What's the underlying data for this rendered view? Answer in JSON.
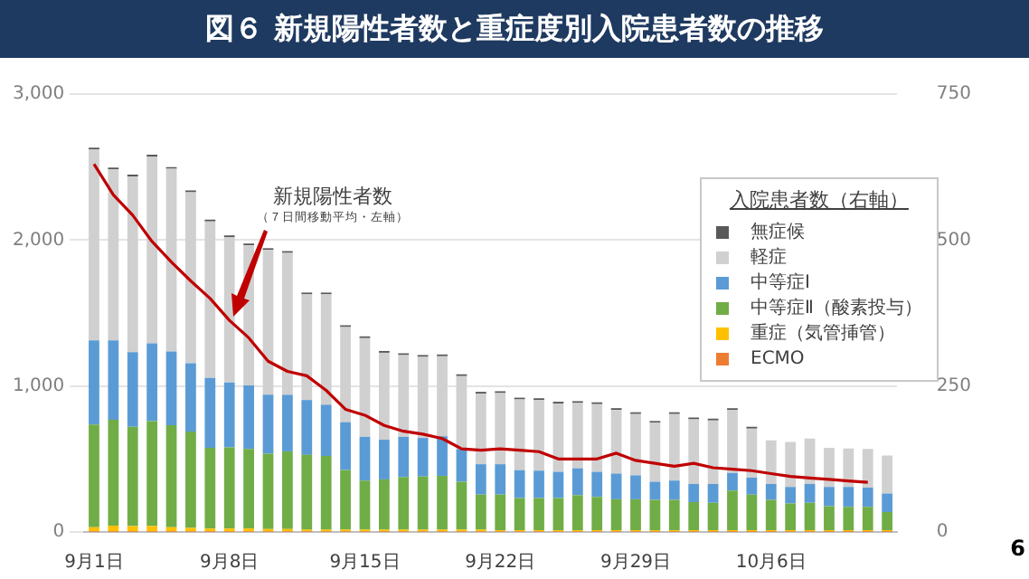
{
  "chart_data": {
    "type": "bar",
    "stacked": true,
    "title": "図６ 新規陽性者数と重症度別入院患者数の推移",
    "legend_title": "入院患者数（右軸）",
    "legend": "top right",
    "grid": "y",
    "categories": [
      "9月1日",
      null,
      null,
      null,
      null,
      null,
      null,
      "9月8日",
      null,
      null,
      null,
      null,
      null,
      null,
      "9月15日",
      null,
      null,
      null,
      null,
      null,
      null,
      "9月22日",
      null,
      null,
      null,
      null,
      null,
      null,
      "9月29日",
      null,
      null,
      null,
      null,
      null,
      null,
      "10月6日",
      null,
      null,
      null,
      null,
      null,
      null
    ],
    "ylim": [
      0,
      3000
    ],
    "yticks": [
      {
        "value": 0,
        "label": "0"
      },
      {
        "value": 1000,
        "label": "1,000"
      },
      {
        "value": 2000,
        "label": "2,000"
      },
      {
        "value": 3000,
        "label": "3,000"
      }
    ],
    "y2lim": [
      0,
      750
    ],
    "y2ticks": [
      0,
      250,
      500,
      750
    ],
    "series": [
      {
        "name": "ECMO",
        "color": "#ed7d31",
        "axis": "y2",
        "values": [
          1,
          1,
          1,
          1,
          1,
          1,
          1,
          1,
          1,
          1,
          1,
          1,
          1,
          1,
          1,
          1,
          1,
          1,
          1,
          1,
          1,
          1,
          1,
          1,
          1,
          1,
          1,
          1,
          1,
          1,
          1,
          1,
          1,
          1,
          1,
          1,
          1,
          1,
          1,
          1,
          1,
          1
        ]
      },
      {
        "name": "重症（気管挿管）",
        "color": "#ffc000",
        "axis": "y2",
        "values": [
          7,
          10,
          9,
          9,
          7,
          6,
          5,
          5,
          5,
          4,
          4,
          3,
          3,
          3,
          3,
          3,
          3,
          3,
          3,
          3,
          3,
          2,
          2,
          2,
          2,
          2,
          2,
          2,
          2,
          2,
          2,
          2,
          2,
          2,
          2,
          2,
          2,
          2,
          2,
          2,
          2,
          2
        ]
      },
      {
        "name": "中等症Ⅱ（酸素投与）",
        "color": "#70ad47",
        "axis": "y2",
        "values": [
          176,
          181,
          170,
          180,
          175,
          165,
          138,
          139,
          136,
          129,
          133,
          128,
          126,
          102,
          84,
          86,
          90,
          91,
          92,
          82,
          60,
          61,
          55,
          55,
          55,
          60,
          57,
          53,
          53,
          52,
          52,
          48,
          47,
          68,
          61,
          52,
          46,
          47,
          41,
          40,
          40,
          31
        ]
      },
      {
        "name": "中等症Ⅰ",
        "color": "#5b9bd5",
        "axis": "y2",
        "values": [
          144,
          136,
          128,
          133,
          126,
          117,
          120,
          111,
          109,
          101,
          97,
          94,
          88,
          82,
          75,
          68,
          69,
          66,
          68,
          56,
          52,
          52,
          48,
          47,
          45,
          46,
          43,
          44,
          41,
          31,
          33,
          31,
          32,
          30,
          29,
          27,
          28,
          32,
          33,
          34,
          33,
          32
        ]
      },
      {
        "name": "軽症",
        "color": "#d0d0d0",
        "axis": "y2",
        "values": [
          327,
          293,
          301,
          320,
          313,
          293,
          268,
          249,
          240,
          248,
          243,
          181,
          189,
          163,
          169,
          149,
          140,
          139,
          137,
          125,
          121,
          122,
          121,
          121,
          117,
          112,
          116,
          109,
          105,
          101,
          114,
          111,
          109,
          108,
          84,
          75,
          77,
          78,
          67,
          66,
          66,
          65
        ]
      },
      {
        "name": "無症候",
        "color": "#595959",
        "axis": "y2",
        "values": [
          3,
          3,
          3,
          3,
          3,
          3,
          3,
          3,
          3,
          3,
          3,
          3,
          3,
          3,
          3,
          3,
          3,
          3,
          3,
          3,
          3,
          3,
          3,
          3,
          3,
          3,
          3,
          3,
          3,
          3,
          3,
          3,
          3,
          3,
          3,
          null,
          null,
          null,
          null,
          null,
          null,
          null
        ]
      },
      {
        "type": "line",
        "color": "#c00000",
        "values": [
          2520,
          2310,
          2170,
          1990,
          1850,
          1720,
          1600,
          1450,
          1330,
          1170,
          1100,
          1070,
          970,
          840,
          800,
          730,
          690,
          670,
          640,
          570,
          560,
          570,
          560,
          550,
          500,
          500,
          500,
          540,
          490,
          470,
          450,
          470,
          440,
          430,
          420,
          400,
          380,
          370,
          360,
          350,
          340,
          null
        ]
      }
    ],
    "annotations": [
      "新規陽性者数",
      "（７日間移動平均・左軸）",
      "6"
    ]
  }
}
